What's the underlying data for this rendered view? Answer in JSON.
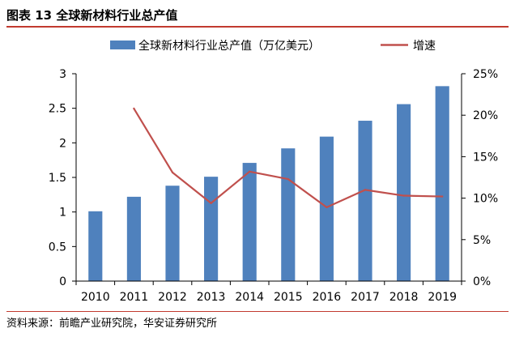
{
  "figure": {
    "title": "图表 13 全球新材料行业总产值",
    "source": "资料来源：前瞻产业研究院，华安证券研究所"
  },
  "colors": {
    "bar": "#4f81bd",
    "line": "#c0504d",
    "axis": "#000000",
    "rule": "#c23a2f"
  },
  "chart_data": {
    "type": "bar",
    "categories": [
      "2010",
      "2011",
      "2012",
      "2013",
      "2014",
      "2015",
      "2016",
      "2017",
      "2018",
      "2019"
    ],
    "series": [
      {
        "name": "全球新材料行业总产值（万亿美元）",
        "type": "bar",
        "axis": "left",
        "values": [
          1.01,
          1.22,
          1.38,
          1.51,
          1.71,
          1.92,
          2.09,
          2.32,
          2.56,
          2.82
        ]
      },
      {
        "name": "增速",
        "type": "line",
        "axis": "right",
        "values": [
          null,
          20.8,
          13.1,
          9.4,
          13.2,
          12.3,
          8.9,
          11.0,
          10.3,
          10.2
        ]
      }
    ],
    "ylim": [
      0,
      3
    ],
    "yticks": [
      "0",
      "0.5",
      "1",
      "1.5",
      "2",
      "2.5",
      "3"
    ],
    "y2lim": [
      0,
      25
    ],
    "y2ticks": [
      "0%",
      "5%",
      "10%",
      "15%",
      "20%",
      "25%"
    ],
    "legend": "top-center",
    "grid": false
  }
}
